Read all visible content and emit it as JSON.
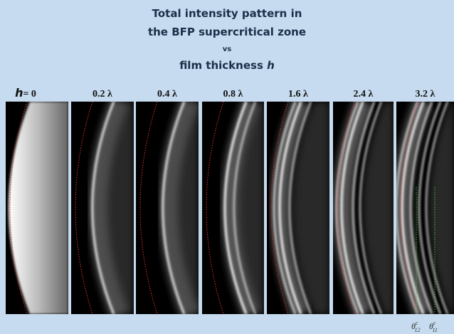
{
  "title": {
    "line1": "Total intensity pattern in",
    "line2": "the BFP supercritical zone",
    "line3": "vs",
    "line4": {
      "text": "film thickness",
      "var": "h"
    }
  },
  "panels": [
    {
      "var": "h",
      "label": "= 0"
    },
    {
      "label": "0.2 λ"
    },
    {
      "label": "0.4 λ"
    },
    {
      "label": "0.8 λ"
    },
    {
      "label": "1.6 λ"
    },
    {
      "label": "2.4 λ"
    },
    {
      "label": "3.2 λ"
    }
  ],
  "angle_labels": [
    {
      "symbol": "θ",
      "sup": "c",
      "sub": "12"
    },
    {
      "symbol": "θ",
      "sup": "c",
      "sub": "11"
    }
  ]
}
